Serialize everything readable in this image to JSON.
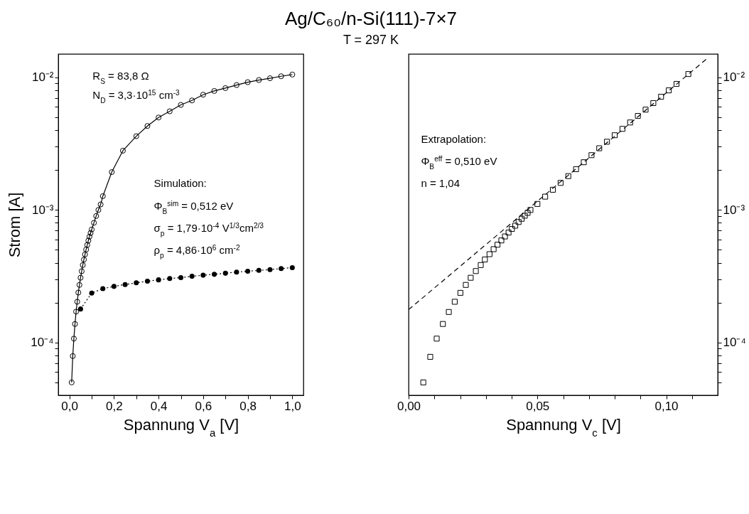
{
  "chart_data": [
    {
      "type": "other",
      "title": "Ag/C₆₀/n-Si(111)-7×7",
      "subtitle": "T = 297 K"
    },
    {
      "type": "line",
      "xlabel": "Spannung V$_{a}$ [V]",
      "ylabel": "Strom [A]",
      "log": "y",
      "xlim": [
        -0.05,
        1.05
      ],
      "ylim": [
        4e-05,
        0.015
      ],
      "xticks": [
        {
          "value": 0,
          "label": "0,0"
        },
        {
          "value": 0.1,
          "label": null
        },
        {
          "value": 0.2,
          "label": "0,2"
        },
        {
          "value": 0.3,
          "label": null
        },
        {
          "value": 0.4,
          "label": "0,4"
        },
        {
          "value": 0.5,
          "label": null
        },
        {
          "value": 0.6,
          "label": "0,6"
        },
        {
          "value": 0.7,
          "label": null
        },
        {
          "value": 0.8,
          "label": "0,8"
        },
        {
          "value": 0.9,
          "label": null
        },
        {
          "value": 1,
          "label": "1,0"
        }
      ],
      "yticks": [
        {
          "value": 5e-05,
          "label": null
        },
        {
          "value": 6e-05,
          "label": null
        },
        {
          "value": 7e-05,
          "label": null
        },
        {
          "value": 8e-05,
          "label": null
        },
        {
          "value": 9e-05,
          "label": null
        },
        {
          "value": 0.0001,
          "label": "10⁻⁴"
        },
        {
          "value": 0.0002,
          "label": null
        },
        {
          "value": 0.0003,
          "label": null
        },
        {
          "value": 0.0004,
          "label": null
        },
        {
          "value": 0.0005,
          "label": null
        },
        {
          "value": 0.0006,
          "label": null
        },
        {
          "value": 0.0007,
          "label": null
        },
        {
          "value": 0.0008,
          "label": null
        },
        {
          "value": 0.0009,
          "label": null
        },
        {
          "value": 0.001,
          "label": "10⁻³"
        },
        {
          "value": 0.002,
          "label": null
        },
        {
          "value": 0.003,
          "label": null
        },
        {
          "value": 0.004,
          "label": null
        },
        {
          "value": 0.005,
          "label": null
        },
        {
          "value": 0.006,
          "label": null
        },
        {
          "value": 0.007,
          "label": null
        },
        {
          "value": 0.008,
          "label": null
        },
        {
          "value": 0.009,
          "label": null
        },
        {
          "value": 0.01,
          "label": "10⁻²"
        }
      ],
      "annotations": [
        "R$_{S}$ = 83,8 Ω",
        "N$_{D}$ = 3,3·10$^{15}$ cm$^{-3}$",
        "Simulation:",
        "Φ$_{B}$$^{sim}$ = 0,512 eV",
        "σ$_{p}$ = 1,79·10$^{-4}$ V$^{1/3}$cm$^{2/3}$",
        "ρ$_{p}$ = 4,86·10$^{6}$ cm$^{-2}$"
      ],
      "series": [
        {
          "color": "#000000",
          "marker": "circle",
          "line_style": "solid",
          "x": [
            0.01,
            0.015,
            0.02,
            0.025,
            0.03,
            0.035,
            0.04,
            0.045,
            0.05,
            0.055,
            0.06,
            0.065,
            0.07,
            0.075,
            0.08,
            0.085,
            0.09,
            0.095,
            0.1,
            0.11,
            0.12,
            0.13,
            0.14,
            0.15,
            0.19,
            0.24,
            0.3,
            0.35,
            0.4,
            0.45,
            0.5,
            0.55,
            0.6,
            0.65,
            0.7,
            0.75,
            0.8,
            0.85,
            0.9,
            0.95,
            1.0
          ],
          "values": [
            5e-05,
            7.9e-05,
            0.000107,
            0.000138,
            0.000171,
            0.000203,
            0.000238,
            0.000272,
            0.000308,
            0.000345,
            0.000384,
            0.000422,
            0.000462,
            0.000503,
            0.000544,
            0.000587,
            0.000629,
            0.00067,
            0.000713,
            0.0008,
            0.0009,
            0.001,
            0.0011,
            0.00127,
            0.00193,
            0.0028,
            0.0036,
            0.0043,
            0.00498,
            0.00555,
            0.0062,
            0.0067,
            0.0074,
            0.0079,
            0.0083,
            0.00875,
            0.0092,
            0.00955,
            0.00985,
            0.0102,
            0.0105
          ]
        },
        {
          "color": "#000000",
          "marker": "circle",
          "line_style": "dotted",
          "x": [
            0.05,
            0.1,
            0.15,
            0.2,
            0.25,
            0.3,
            0.35,
            0.4,
            0.45,
            0.5,
            0.55,
            0.6,
            0.65,
            0.7,
            0.75,
            0.8,
            0.85,
            0.9,
            0.95,
            1.0
          ],
          "values": [
            0.000179,
            0.000236,
            0.000255,
            0.000265,
            0.000274,
            0.000282,
            0.00029,
            0.000297,
            0.000304,
            0.000309,
            0.000316,
            0.000322,
            0.000327,
            0.000333,
            0.00034,
            0.000345,
            0.00035,
            0.000355,
            0.000361,
            0.000367
          ]
        }
      ]
    },
    {
      "type": "scatter",
      "xlabel": "Spannung V$_{c}$ [V]",
      "log": "y",
      "xlim": [
        0,
        0.12
      ],
      "ylim": [
        4e-05,
        0.015
      ],
      "xticks": [
        {
          "value": 0,
          "label": "0,00"
        },
        {
          "value": 0.01,
          "label": null
        },
        {
          "value": 0.02,
          "label": null
        },
        {
          "value": 0.03,
          "label": null
        },
        {
          "value": 0.04,
          "label": null
        },
        {
          "value": 0.05,
          "label": "0,05"
        },
        {
          "value": 0.06,
          "label": null
        },
        {
          "value": 0.07,
          "label": null
        },
        {
          "value": 0.08,
          "label": null
        },
        {
          "value": 0.09,
          "label": null
        },
        {
          "value": 0.1,
          "label": "0,10"
        },
        {
          "value": 0.11,
          "label": null
        }
      ],
      "yticks": [
        {
          "value": 5e-05,
          "label": null
        },
        {
          "value": 6e-05,
          "label": null
        },
        {
          "value": 7e-05,
          "label": null
        },
        {
          "value": 8e-05,
          "label": null
        },
        {
          "value": 9e-05,
          "label": null
        },
        {
          "value": 0.0001,
          "label": "10⁻⁴"
        },
        {
          "value": 0.0002,
          "label": null
        },
        {
          "value": 0.0003,
          "label": null
        },
        {
          "value": 0.0004,
          "label": null
        },
        {
          "value": 0.0005,
          "label": null
        },
        {
          "value": 0.0006,
          "label": null
        },
        {
          "value": 0.0007,
          "label": null
        },
        {
          "value": 0.0008,
          "label": null
        },
        {
          "value": 0.0009,
          "label": null
        },
        {
          "value": 0.001,
          "label": "10⁻³"
        },
        {
          "value": 0.002,
          "label": null
        },
        {
          "value": 0.003,
          "label": null
        },
        {
          "value": 0.004,
          "label": null
        },
        {
          "value": 0.005,
          "label": null
        },
        {
          "value": 0.006,
          "label": null
        },
        {
          "value": 0.007,
          "label": null
        },
        {
          "value": 0.008,
          "label": null
        },
        {
          "value": 0.009,
          "label": null
        },
        {
          "value": 0.01,
          "label": "10⁻²"
        }
      ],
      "annotations": [
        "Extrapolation:",
        "Φ$_{B}$$^{eff}$ = 0,510 eV",
        "n = 1,04"
      ],
      "series": [
        {
          "type": "line",
          "color": "#000000",
          "marker": "none",
          "line_style": "dashed",
          "x": [
            0,
            0.1159
          ],
          "values": [
            0.000177,
            0.0139
          ]
        },
        {
          "type": "scatter",
          "color": "#000000",
          "marker": "square",
          "x": [
            0.0057,
            0.0084,
            0.0109,
            0.0133,
            0.0156,
            0.0179,
            0.0201,
            0.0222,
            0.0241,
            0.0261,
            0.028,
            0.0296,
            0.0314,
            0.033,
            0.0345,
            0.036,
            0.0374,
            0.0388,
            0.0401,
            0.0414,
            0.0427,
            0.0439,
            0.0451,
            0.0462,
            0.0473,
            0.05,
            0.053,
            0.056,
            0.059,
            0.062,
            0.065,
            0.068,
            0.071,
            0.074,
            0.077,
            0.08,
            0.083,
            0.086,
            0.089,
            0.092,
            0.095,
            0.098,
            0.101,
            0.104,
            0.1086
          ],
          "values": [
            5e-05,
            7.8e-05,
            0.000107,
            0.000138,
            0.00017,
            0.000203,
            0.000237,
            0.000272,
            0.000308,
            0.000346,
            0.000384,
            0.000423,
            0.000464,
            0.000506,
            0.000547,
            0.000589,
            0.000631,
            0.000675,
            0.000719,
            0.000761,
            0.000811,
            0.000858,
            0.000905,
            0.000951,
            0.001,
            0.00111,
            0.00126,
            0.00142,
            0.0016,
            0.0018,
            0.00203,
            0.00229,
            0.00259,
            0.00292,
            0.00327,
            0.00366,
            0.00409,
            0.00457,
            0.00512,
            0.00571,
            0.0064,
            0.00714,
            0.00798,
            0.00893,
            0.0106
          ]
        }
      ]
    }
  ]
}
